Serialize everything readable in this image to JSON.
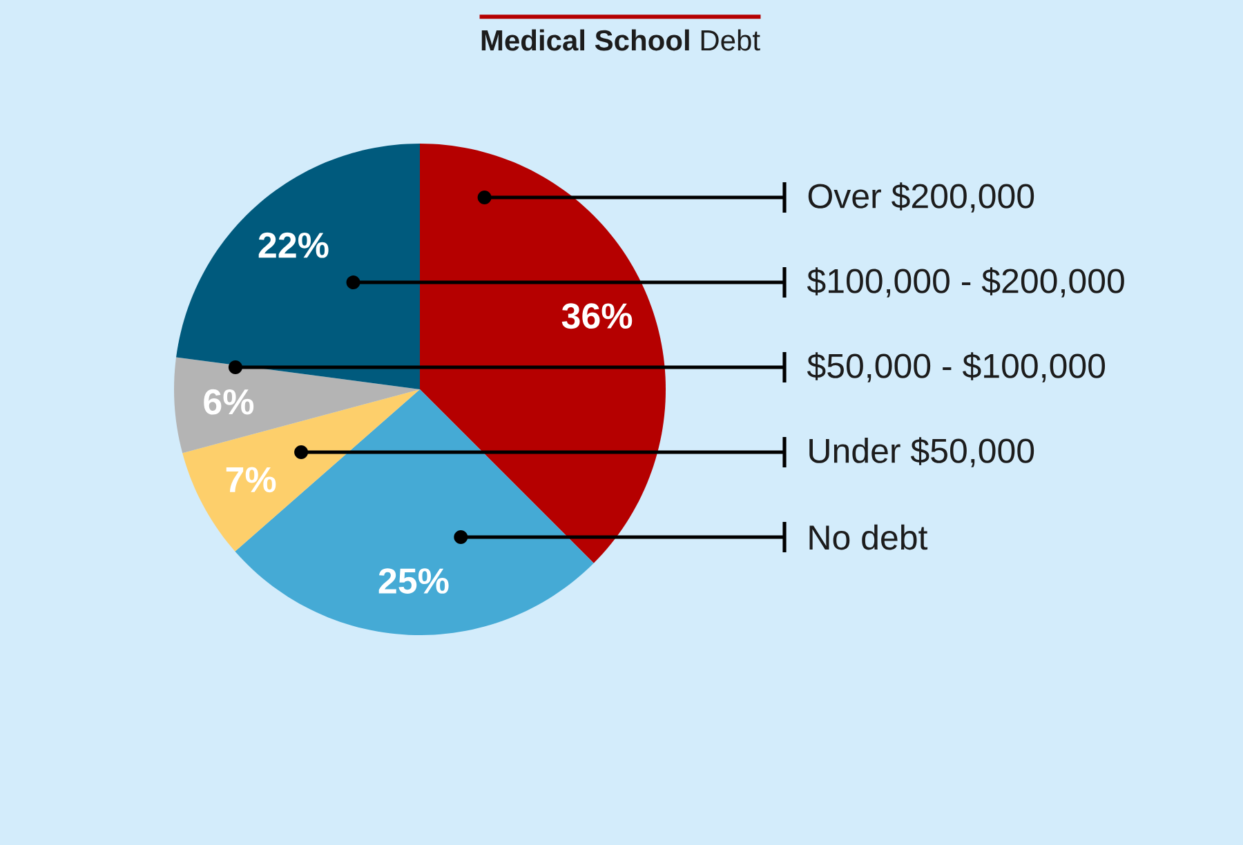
{
  "chart_data": {
    "type": "pie",
    "title": "**Medical School** Debt",
    "categories": [
      "Over $200,000",
      "No debt",
      "Under $50,000",
      "$50,000 - $100,000",
      "$100,000 - $200,000"
    ],
    "values": [
      36,
      25,
      7,
      6,
      22
    ],
    "colors": [
      "#b50000",
      "#45aad5",
      "#fdcf6b",
      "#b4b4b4",
      "#005a7d"
    ],
    "value_labels": [
      "36%",
      "25%",
      "7%",
      "6%",
      "22%"
    ]
  }
}
